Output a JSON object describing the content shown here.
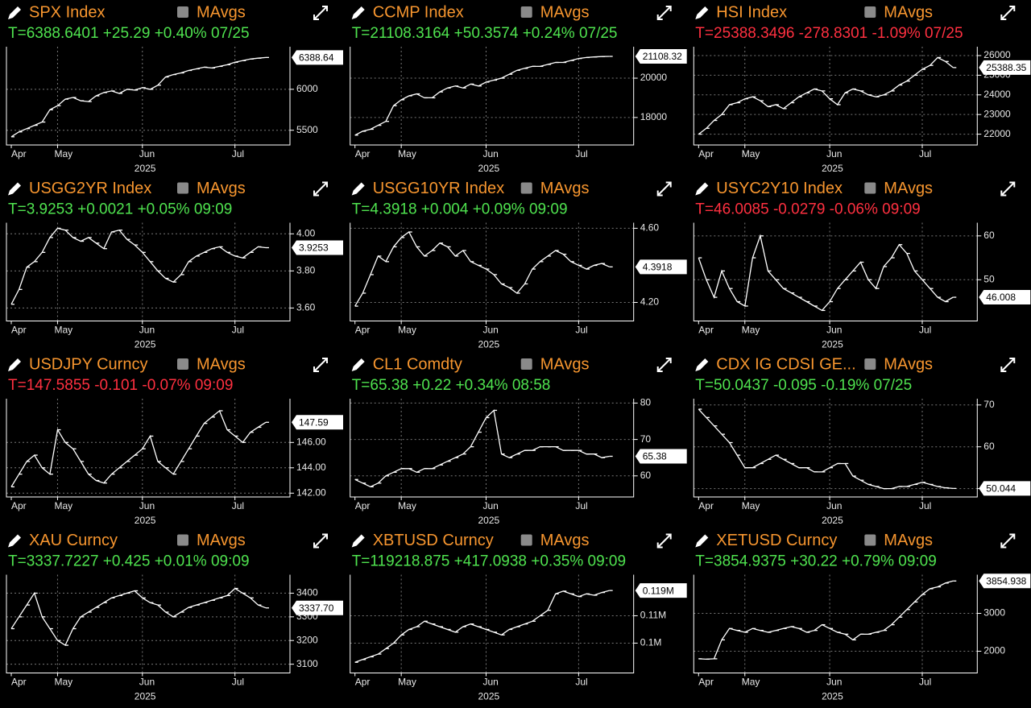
{
  "chart_data": [
    {
      "type": "line",
      "title": "SPX Index",
      "legend": "MAvgs",
      "quote": "T=6388.6401 +25.29 +0.40% 07/25",
      "quote_color": "#4fe34f",
      "color": "#ffffff",
      "last_label": "6388.64",
      "x_label": "2025",
      "categories": [
        "Apr",
        null,
        null,
        null,
        null,
        null,
        "May",
        null,
        null,
        null,
        null,
        null,
        null,
        null,
        null,
        null,
        null,
        "Jun",
        null,
        null,
        null,
        null,
        null,
        null,
        null,
        null,
        null,
        null,
        null,
        "Jul",
        null,
        null,
        null,
        null
      ],
      "values": [
        5420,
        5480,
        5520,
        5560,
        5600,
        5750,
        5800,
        5880,
        5900,
        5860,
        5850,
        5920,
        5960,
        5980,
        5950,
        6000,
        5990,
        6020,
        6000,
        6050,
        6150,
        6180,
        6200,
        6230,
        6250,
        6270,
        6260,
        6280,
        6300,
        6330,
        6350,
        6370,
        6380,
        6388.64
      ],
      "ylim": [
        5320,
        6520
      ],
      "yticks": [
        5500,
        6000
      ],
      "grid": true
    },
    {
      "type": "line",
      "title": "CCMP Index",
      "legend": "MAvgs",
      "quote": "T=21108.3164 +50.3574 +0.24% 07/25",
      "quote_color": "#4fe34f",
      "color": "#ffffff",
      "last_label": "21108.32",
      "x_label": "2025",
      "categories": [
        "Apr",
        null,
        null,
        null,
        null,
        null,
        "May",
        null,
        null,
        null,
        null,
        null,
        null,
        null,
        null,
        null,
        null,
        "Jun",
        null,
        null,
        null,
        null,
        null,
        null,
        null,
        null,
        null,
        null,
        null,
        "Jul",
        null,
        null,
        null,
        null
      ],
      "values": [
        17100,
        17300,
        17400,
        17600,
        17800,
        18600,
        18900,
        19100,
        19200,
        19000,
        19000,
        19300,
        19500,
        19600,
        19500,
        19700,
        19600,
        19800,
        19900,
        20000,
        20200,
        20400,
        20500,
        20600,
        20600,
        20700,
        20800,
        20800,
        20900,
        21000,
        21050,
        21080,
        21100,
        21108.32
      ],
      "ylim": [
        16600,
        21600
      ],
      "yticks": [
        18000,
        20000
      ],
      "grid": true
    },
    {
      "type": "line",
      "title": "HSI Index",
      "legend": "MAvgs",
      "quote": "T=25388.3496 -278.8301 -1.09% 07/25",
      "quote_color": "#ff3040",
      "color": "#ffffff",
      "last_label": "25388.35",
      "x_label": "2025",
      "categories": [
        "Apr",
        null,
        null,
        null,
        null,
        null,
        "May",
        null,
        null,
        null,
        null,
        null,
        null,
        null,
        null,
        null,
        null,
        "Jun",
        null,
        null,
        null,
        null,
        null,
        null,
        null,
        null,
        null,
        null,
        null,
        "Jul",
        null,
        null,
        null,
        null
      ],
      "values": [
        22000,
        22300,
        22700,
        23000,
        23500,
        23600,
        23800,
        23900,
        23700,
        23400,
        23500,
        23300,
        23600,
        23900,
        24100,
        24300,
        24200,
        23800,
        23500,
        24100,
        24300,
        24200,
        24000,
        23900,
        24000,
        24200,
        24500,
        24700,
        25000,
        25300,
        25500,
        25900,
        25700,
        25388.35
      ],
      "ylim": [
        21450,
        26450
      ],
      "yticks": [
        22000,
        23000,
        24000,
        25000,
        26000
      ],
      "grid": true
    },
    {
      "type": "line",
      "title": "USGG2YR Index",
      "legend": "MAvgs",
      "quote": "T=3.9253 +0.0021 +0.05% 09:09",
      "quote_color": "#4fe34f",
      "color": "#ffffff",
      "last_label": "3.9253",
      "x_label": "2025",
      "categories": [
        "Apr",
        null,
        null,
        null,
        null,
        null,
        "May",
        null,
        null,
        null,
        null,
        null,
        null,
        null,
        null,
        null,
        null,
        "Jun",
        null,
        null,
        null,
        null,
        null,
        null,
        null,
        null,
        null,
        null,
        null,
        "Jul",
        null,
        null,
        null,
        null
      ],
      "values": [
        3.62,
        3.7,
        3.82,
        3.85,
        3.9,
        3.98,
        4.03,
        4.02,
        3.98,
        3.96,
        3.98,
        3.95,
        3.92,
        4.01,
        4.02,
        3.97,
        3.94,
        3.9,
        3.85,
        3.8,
        3.76,
        3.74,
        3.78,
        3.85,
        3.88,
        3.9,
        3.92,
        3.93,
        3.9,
        3.88,
        3.87,
        3.9,
        3.93,
        3.9253
      ],
      "ylim": [
        3.53,
        4.06
      ],
      "yticks": [
        {
          "value": 3.6,
          "label": "3.60"
        },
        {
          "value": 3.8,
          "label": "3.80"
        },
        {
          "value": 4,
          "label": "4.00"
        }
      ],
      "grid": true
    },
    {
      "type": "line",
      "title": "USGG10YR Index",
      "legend": "MAvgs",
      "quote": "T=4.3918 +0.004 +0.09% 09:09",
      "quote_color": "#4fe34f",
      "color": "#ffffff",
      "last_label": "4.3918",
      "x_label": "2025",
      "categories": [
        "Apr",
        null,
        null,
        null,
        null,
        null,
        "May",
        null,
        null,
        null,
        null,
        null,
        null,
        null,
        null,
        null,
        null,
        "Jun",
        null,
        null,
        null,
        null,
        null,
        null,
        null,
        null,
        null,
        null,
        null,
        "Jul",
        null,
        null,
        null,
        null
      ],
      "values": [
        4.18,
        4.25,
        4.35,
        4.45,
        4.42,
        4.5,
        4.55,
        4.58,
        4.5,
        4.45,
        4.48,
        4.52,
        4.5,
        4.45,
        4.48,
        4.42,
        4.4,
        4.38,
        4.35,
        4.3,
        4.28,
        4.25,
        4.3,
        4.38,
        4.42,
        4.45,
        4.48,
        4.46,
        4.42,
        4.4,
        4.38,
        4.4,
        4.41,
        4.3918
      ],
      "ylim": [
        4.1,
        4.63
      ],
      "yticks": [
        {
          "value": 4.2,
          "label": "4.20"
        },
        {
          "value": 4.6,
          "label": "4.60"
        }
      ],
      "grid": true
    },
    {
      "type": "line",
      "title": "USYC2Y10 Index",
      "legend": "MAvgs",
      "quote": "T=46.0085 -0.0279 -0.06% 09:09",
      "quote_color": "#ff3040",
      "color": "#ffffff",
      "last_label": "46.008",
      "x_label": "2025",
      "categories": [
        "Apr",
        null,
        null,
        null,
        null,
        null,
        "May",
        null,
        null,
        null,
        null,
        null,
        null,
        null,
        null,
        null,
        null,
        "Jun",
        null,
        null,
        null,
        null,
        null,
        null,
        null,
        null,
        null,
        null,
        null,
        "Jul",
        null,
        null,
        null,
        null
      ],
      "values": [
        55,
        50,
        46,
        52,
        48,
        45,
        44,
        55,
        60,
        52,
        50,
        48,
        47,
        46,
        45,
        44,
        43,
        45,
        48,
        50,
        52,
        54,
        50,
        48,
        53,
        55,
        58,
        56,
        52,
        50,
        48,
        46,
        45,
        46.008
      ],
      "ylim": [
        40.6,
        63
      ],
      "yticks": [
        50,
        60
      ],
      "grid": true
    },
    {
      "type": "line",
      "title": "USDJPY Curncy",
      "legend": "MAvgs",
      "quote": "T=147.5855 -0.101 -0.07% 09:09",
      "quote_color": "#ff3040",
      "color": "#ffffff",
      "last_label": "147.59",
      "x_label": "2025",
      "categories": [
        "Apr",
        null,
        null,
        null,
        null,
        null,
        "May",
        null,
        null,
        null,
        null,
        null,
        null,
        null,
        null,
        null,
        null,
        "Jun",
        null,
        null,
        null,
        null,
        null,
        null,
        null,
        null,
        null,
        null,
        null,
        "Jul",
        null,
        null,
        null,
        null
      ],
      "values": [
        142.5,
        143.5,
        144.5,
        145.0,
        144.0,
        143.5,
        147.0,
        146.0,
        145.5,
        144.5,
        143.5,
        143.0,
        142.8,
        143.5,
        144.0,
        144.5,
        145.0,
        145.5,
        146.5,
        144.5,
        144.0,
        143.5,
        144.5,
        145.5,
        146.5,
        147.5,
        148.0,
        148.5,
        147.0,
        146.5,
        146.0,
        146.8,
        147.2,
        147.59
      ],
      "ylim": [
        141.7,
        149.45
      ],
      "yticks": [
        {
          "value": 142,
          "label": "142.00"
        },
        {
          "value": 144,
          "label": "144.00"
        },
        {
          "value": 146,
          "label": "146.00"
        }
      ],
      "grid": true
    },
    {
      "type": "line",
      "title": "CL1 Comdty",
      "legend": "MAvgs",
      "quote": "T=65.38 +0.22 +0.34% 08:58",
      "quote_color": "#4fe34f",
      "color": "#ffffff",
      "last_label": "65.38",
      "x_label": "2025",
      "categories": [
        "Apr",
        null,
        null,
        null,
        null,
        null,
        "May",
        null,
        null,
        null,
        null,
        null,
        null,
        null,
        null,
        null,
        null,
        "Jun",
        null,
        null,
        null,
        null,
        null,
        null,
        null,
        null,
        null,
        null,
        null,
        "Jul",
        null,
        null,
        null,
        null
      ],
      "values": [
        59,
        58,
        57,
        58,
        60,
        61,
        62,
        62,
        61,
        62,
        62,
        63,
        64,
        65,
        66,
        68,
        72,
        76,
        78,
        66,
        65,
        66,
        67,
        67,
        68,
        68,
        68,
        67,
        67,
        67,
        66,
        66,
        65,
        65.38
      ],
      "ylim": [
        54.2,
        81.2
      ],
      "yticks": [
        60,
        70,
        80
      ],
      "grid": true
    },
    {
      "type": "line",
      "title": "CDX IG CDSI GE...",
      "legend": "MAvgs",
      "quote": "T=50.0437 -0.095 -0.19% 07/25",
      "quote_color": "#4fe34f",
      "color": "#ffffff",
      "last_label": "50.044",
      "x_label": "2025",
      "categories": [
        "Apr",
        null,
        null,
        null,
        null,
        null,
        "May",
        null,
        null,
        null,
        null,
        null,
        null,
        null,
        null,
        null,
        null,
        "Jun",
        null,
        null,
        null,
        null,
        null,
        null,
        null,
        null,
        null,
        null,
        null,
        "Jul",
        null,
        null,
        null,
        null
      ],
      "values": [
        69,
        67,
        65,
        63,
        61,
        58,
        55,
        55,
        56,
        57,
        58,
        57,
        56,
        55,
        55,
        54,
        54,
        55,
        56,
        56,
        53,
        52,
        51,
        50.5,
        50,
        50,
        50.5,
        50.5,
        51,
        51.5,
        51,
        50.5,
        50.2,
        50.044
      ],
      "ylim": [
        48,
        71.5
      ],
      "yticks": [
        50,
        60,
        70
      ],
      "grid": true
    },
    {
      "type": "line",
      "title": "XAU Curncy",
      "legend": "MAvgs",
      "quote": "T=3337.7227 +0.425 +0.01% 09:09",
      "quote_color": "#4fe34f",
      "color": "#ffffff",
      "last_label": "3337.70",
      "x_label": "2025",
      "categories": [
        "Apr",
        null,
        null,
        null,
        null,
        null,
        "May",
        null,
        null,
        null,
        null,
        null,
        null,
        null,
        null,
        null,
        null,
        "Jun",
        null,
        null,
        null,
        null,
        null,
        null,
        null,
        null,
        null,
        null,
        null,
        "Jul",
        null,
        null,
        null,
        null
      ],
      "values": [
        3250,
        3300,
        3350,
        3400,
        3300,
        3250,
        3200,
        3180,
        3250,
        3300,
        3320,
        3340,
        3360,
        3380,
        3390,
        3400,
        3410,
        3380,
        3360,
        3350,
        3320,
        3300,
        3320,
        3340,
        3350,
        3360,
        3370,
        3380,
        3390,
        3420,
        3400,
        3380,
        3350,
        3337.7
      ],
      "ylim": [
        3063,
        3478
      ],
      "yticks": [
        3100,
        3200,
        3300,
        3400
      ],
      "grid": true
    },
    {
      "type": "line",
      "title": "XBTUSD Curncy",
      "legend": "MAvgs",
      "quote": "T=119218.875 +417.0938 +0.35% 09:09",
      "quote_color": "#4fe34f",
      "color": "#ffffff",
      "last_label": "0.119M",
      "x_label": "2025",
      "categories": [
        "Apr",
        null,
        null,
        null,
        null,
        null,
        "May",
        null,
        null,
        null,
        null,
        null,
        null,
        null,
        null,
        null,
        null,
        "Jun",
        null,
        null,
        null,
        null,
        null,
        null,
        null,
        null,
        null,
        null,
        null,
        "Jul",
        null,
        null,
        null,
        null
      ],
      "values": [
        93000,
        94000,
        95000,
        96000,
        98000,
        100000,
        103000,
        105000,
        106000,
        108000,
        107000,
        106000,
        105000,
        104000,
        106000,
        107000,
        106000,
        105000,
        104000,
        103000,
        105000,
        106000,
        107000,
        108000,
        110000,
        112000,
        118000,
        119000,
        118000,
        117000,
        118000,
        117500,
        118500,
        119218.875
      ],
      "ylim": [
        89100,
        125000
      ],
      "yticks": [
        {
          "value": 100000,
          "label": "0.1M"
        },
        {
          "value": 110000,
          "label": "0.11M"
        }
      ],
      "grid": true
    },
    {
      "type": "line",
      "title": "XETUSD Curncy",
      "legend": "MAvgs",
      "quote": "T=3854.9375 +30.22 +0.79% 09:09",
      "quote_color": "#4fe34f",
      "color": "#ffffff",
      "last_label": "3854.938",
      "x_label": "2025",
      "categories": [
        "Apr",
        null,
        null,
        null,
        null,
        null,
        "May",
        null,
        null,
        null,
        null,
        null,
        null,
        null,
        null,
        null,
        null,
        "Jun",
        null,
        null,
        null,
        null,
        null,
        null,
        null,
        null,
        null,
        null,
        null,
        "Jul",
        null,
        null,
        null,
        null
      ],
      "values": [
        1800,
        1790,
        1800,
        2300,
        2600,
        2550,
        2500,
        2600,
        2550,
        2500,
        2550,
        2600,
        2650,
        2600,
        2500,
        2550,
        2700,
        2600,
        2500,
        2450,
        2300,
        2450,
        2450,
        2500,
        2550,
        2700,
        2900,
        3100,
        3300,
        3500,
        3650,
        3700,
        3800,
        3854.938
      ],
      "ylim": [
        1426,
        4021
      ],
      "yticks": [
        2000,
        3000
      ],
      "grid": true
    }
  ]
}
